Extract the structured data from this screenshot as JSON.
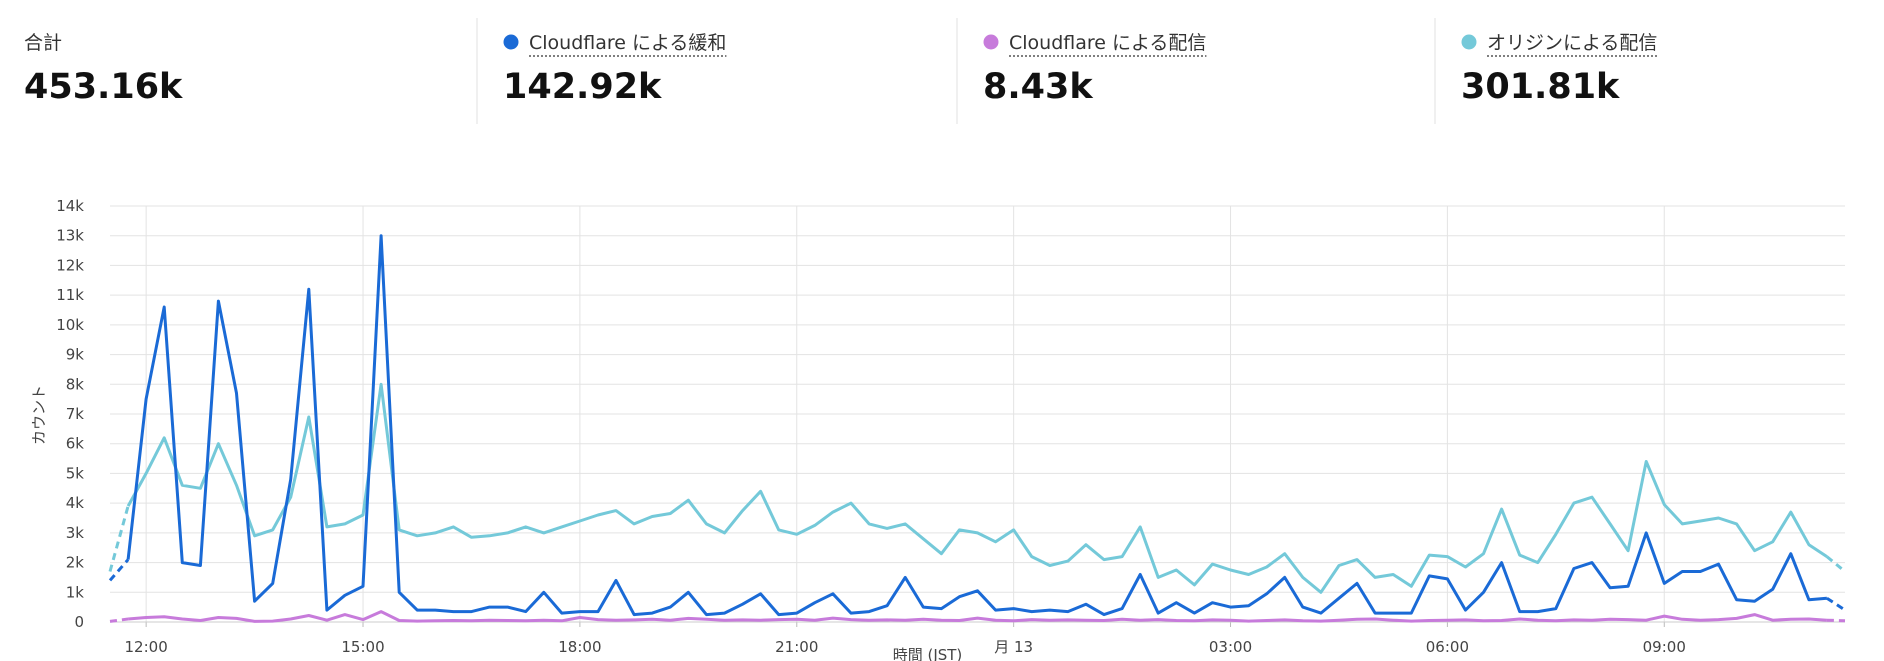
{
  "summary": {
    "label": "合計",
    "value": "453.16k"
  },
  "chart_data": {
    "type": "line",
    "y_axis_label": "カウント",
    "x_axis_label": "時間 (JST)",
    "x": [
      11.5,
      11.75,
      12,
      12.25,
      12.5,
      12.75,
      13,
      13.25,
      13.5,
      13.75,
      14,
      14.25,
      14.5,
      14.75,
      15,
      15.25,
      15.5,
      15.75,
      16,
      16.25,
      16.5,
      16.75,
      17,
      17.25,
      17.5,
      17.75,
      18,
      18.25,
      18.5,
      18.75,
      19,
      19.25,
      19.5,
      19.75,
      20,
      20.25,
      20.5,
      20.75,
      21,
      21.25,
      21.5,
      21.75,
      22,
      22.25,
      22.5,
      22.75,
      23,
      23.25,
      23.5,
      23.75,
      24,
      24.25,
      24.5,
      24.75,
      25,
      25.25,
      25.5,
      25.75,
      26,
      26.25,
      26.5,
      26.75,
      27,
      27.25,
      27.5,
      27.75,
      28,
      28.25,
      28.5,
      28.75,
      29,
      29.25,
      29.5,
      29.75,
      30,
      30.25,
      30.5,
      30.75,
      31,
      31.25,
      31.5,
      31.75,
      32,
      32.25,
      32.5,
      32.75,
      33,
      33.25,
      33.5,
      33.75,
      34,
      34.25,
      34.5,
      34.75,
      35,
      35.25,
      35.5
    ],
    "xlim": [
      11.5,
      35.5
    ],
    "xticks": [
      {
        "value": 12,
        "label": "12:00"
      },
      {
        "value": 15,
        "label": "15:00"
      },
      {
        "value": 18,
        "label": "18:00"
      },
      {
        "value": 21,
        "label": "21:00"
      },
      {
        "value": 24,
        "label": "月 13"
      },
      {
        "value": 27,
        "label": "03:00"
      },
      {
        "value": 30,
        "label": "06:00"
      },
      {
        "value": 33,
        "label": "09:00"
      }
    ],
    "ylim": [
      0,
      14000
    ],
    "yticks": [
      0,
      {
        "value": 1000,
        "label": "1k"
      },
      {
        "value": 2000,
        "label": "2k"
      },
      {
        "value": 3000,
        "label": "3k"
      },
      {
        "value": 4000,
        "label": "4k"
      },
      {
        "value": 5000,
        "label": "5k"
      },
      {
        "value": 6000,
        "label": "6k"
      },
      {
        "value": 7000,
        "label": "7k"
      },
      {
        "value": 8000,
        "label": "8k"
      },
      {
        "value": 9000,
        "label": "9k"
      },
      {
        "value": 10000,
        "label": "10k"
      },
      {
        "value": 11000,
        "label": "11k"
      },
      {
        "value": 12000,
        "label": "12k"
      },
      {
        "value": 13000,
        "label": "13k"
      },
      {
        "value": 14000,
        "label": "14k"
      }
    ],
    "grid": true,
    "series": [
      {
        "name": "Cloudflare による緩和",
        "total": "142.92k",
        "color": "#1a6ad6",
        "values": [
          1400,
          2100,
          7500,
          10600,
          2000,
          1900,
          10800,
          7700,
          700,
          1300,
          4800,
          11200,
          400,
          900,
          1200,
          13000,
          1000,
          400,
          400,
          350,
          350,
          500,
          500,
          350,
          1000,
          300,
          350,
          350,
          1400,
          250,
          300,
          500,
          1000,
          250,
          300,
          600,
          950,
          250,
          300,
          650,
          950,
          300,
          350,
          550,
          1500,
          500,
          450,
          850,
          1050,
          400,
          450,
          350,
          400,
          350,
          600,
          250,
          450,
          1600,
          300,
          650,
          300,
          650,
          500,
          550,
          950,
          1500,
          500,
          300,
          800,
          1300,
          300,
          300,
          300,
          1550,
          1450,
          400,
          1000,
          2000,
          350,
          350,
          450,
          1800,
          2000,
          1150,
          1200,
          3000,
          1300,
          1700,
          1700,
          1950,
          750,
          700,
          1100,
          2300,
          750,
          800,
          400
        ]
      },
      {
        "name": "Cloudflare による配信",
        "total": "8.43k",
        "color": "#c77bdb",
        "values": [
          20,
          100,
          150,
          180,
          100,
          50,
          150,
          120,
          20,
          30,
          100,
          220,
          60,
          250,
          80,
          350,
          50,
          30,
          40,
          50,
          40,
          60,
          50,
          40,
          60,
          40,
          150,
          80,
          60,
          70,
          90,
          60,
          120,
          90,
          60,
          70,
          60,
          80,
          90,
          60,
          130,
          80,
          60,
          70,
          60,
          90,
          60,
          50,
          130,
          60,
          40,
          80,
          60,
          70,
          60,
          50,
          90,
          60,
          80,
          50,
          40,
          70,
          60,
          30,
          50,
          70,
          40,
          30,
          60,
          90,
          100,
          60,
          30,
          50,
          60,
          70,
          40,
          50,
          100,
          60,
          40,
          70,
          60,
          90,
          80,
          60,
          200,
          90,
          60,
          80,
          120,
          250,
          60,
          90,
          100,
          60,
          40
        ]
      },
      {
        "name": "オリジンによる配信",
        "total": "301.81k",
        "color": "#74c9d9",
        "values": [
          1700,
          3900,
          5000,
          6200,
          4600,
          4500,
          6000,
          4600,
          2900,
          3100,
          4200,
          6900,
          3200,
          3300,
          3600,
          8000,
          3100,
          2900,
          3000,
          3200,
          2850,
          2900,
          3000,
          3200,
          3000,
          3200,
          3400,
          3600,
          3750,
          3300,
          3550,
          3650,
          4100,
          3300,
          3000,
          3750,
          4400,
          3100,
          2950,
          3250,
          3700,
          4000,
          3300,
          3150,
          3300,
          2800,
          2300,
          3100,
          3000,
          2700,
          3100,
          2200,
          1900,
          2050,
          2600,
          2100,
          2200,
          3200,
          1500,
          1750,
          1250,
          1950,
          1750,
          1600,
          1850,
          2300,
          1500,
          1000,
          1900,
          2100,
          1500,
          1600,
          1200,
          2250,
          2200,
          1850,
          2300,
          3800,
          2250,
          2000,
          2950,
          4000,
          4200,
          3300,
          2400,
          5400,
          3950,
          3300,
          3400,
          3500,
          3300,
          2400,
          2700,
          3700,
          2600,
          2200,
          1700
        ]
      }
    ]
  }
}
